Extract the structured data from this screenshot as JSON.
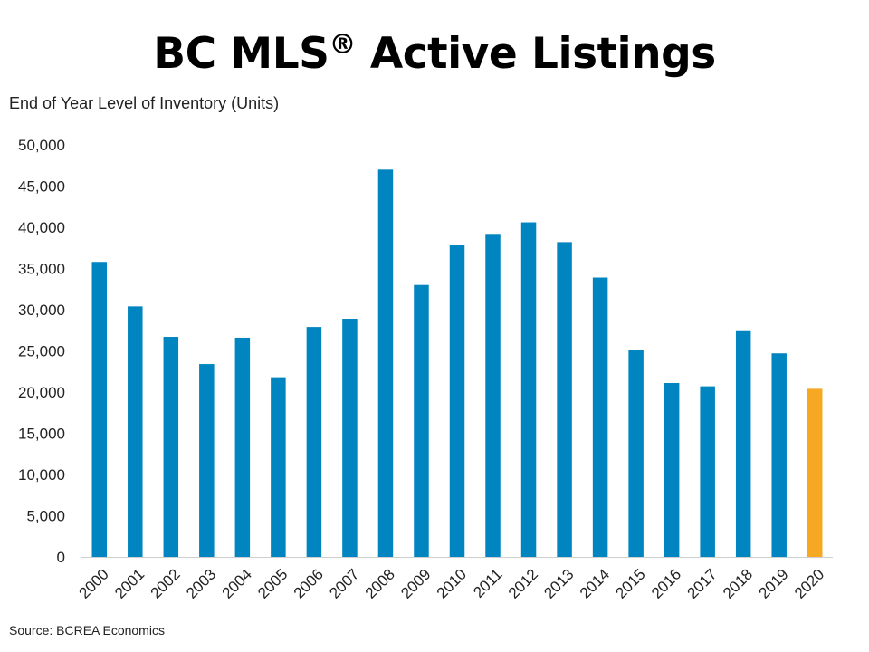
{
  "page": {
    "title_main": "BC MLS",
    "title_reg": "®",
    "title_rest": " Active Listings",
    "source": "Source: BCREA Economics"
  },
  "chart_data": {
    "type": "bar",
    "title": "BC MLS® Active Listings",
    "ylabel": "End of Year Level of Inventory (Units)",
    "xlabel": "",
    "ylim": [
      0,
      50000
    ],
    "yticks": [
      0,
      5000,
      10000,
      15000,
      20000,
      25000,
      30000,
      35000,
      40000,
      45000,
      50000
    ],
    "ytick_labels": [
      "0",
      "5,000",
      "10,000",
      "15,000",
      "20,000",
      "25,000",
      "30,000",
      "35,000",
      "40,000",
      "45,000",
      "50,000"
    ],
    "grid": false,
    "categories": [
      "2000",
      "2001",
      "2002",
      "2003",
      "2004",
      "2005",
      "2006",
      "2007",
      "2008",
      "2009",
      "2010",
      "2011",
      "2012",
      "2013",
      "2014",
      "2015",
      "2016",
      "2017",
      "2018",
      "2019",
      "2020"
    ],
    "values": [
      35800,
      30400,
      26700,
      23400,
      26600,
      21800,
      27900,
      28900,
      47000,
      33000,
      37800,
      39200,
      40600,
      38200,
      33900,
      25100,
      21100,
      20700,
      27500,
      24700,
      20400
    ],
    "colors": {
      "default": "#0085c0",
      "highlight": "#f7a823",
      "highlight_category": "2020",
      "axis": "#cfcfcf"
    }
  }
}
